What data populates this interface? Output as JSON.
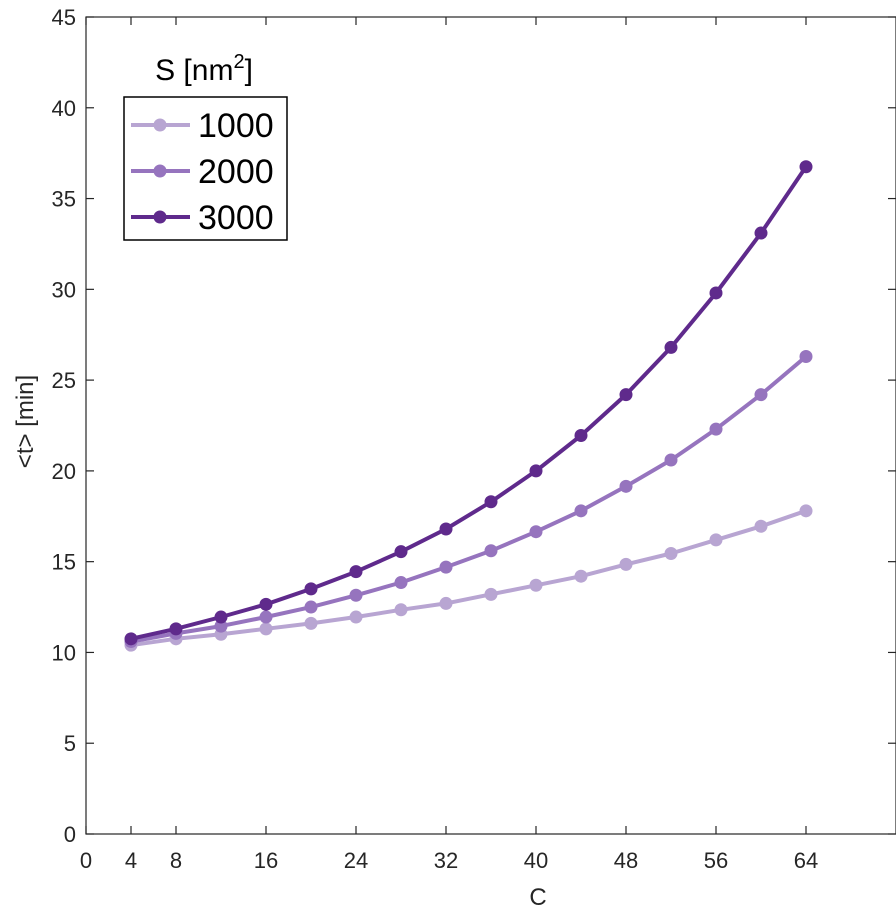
{
  "chart_data": {
    "type": "line",
    "title": "",
    "xlabel": "C",
    "ylabel": "<t> [min]",
    "xlim": [
      0,
      72
    ],
    "ylim": [
      0,
      45
    ],
    "xticks": [
      0,
      4,
      8,
      16,
      24,
      32,
      40,
      48,
      56,
      64
    ],
    "yticks": [
      0,
      5,
      10,
      15,
      20,
      25,
      30,
      35,
      40,
      45
    ],
    "grid": false,
    "legend": {
      "title_main": "S [nm",
      "title_sup": "2",
      "title_end": "]",
      "placement": "top-left"
    },
    "x": [
      4,
      8,
      12,
      16,
      20,
      24,
      28,
      32,
      36,
      40,
      44,
      48,
      52,
      56,
      60,
      64
    ],
    "series": [
      {
        "name": "1000",
        "color": "#b8a5d2",
        "values": [
          10.4,
          10.75,
          11.0,
          11.3,
          11.6,
          11.95,
          12.35,
          12.7,
          13.2,
          13.7,
          14.2,
          14.85,
          15.45,
          16.2,
          16.95,
          17.8
        ]
      },
      {
        "name": "2000",
        "color": "#9674be",
        "values": [
          10.6,
          11.05,
          11.45,
          11.95,
          12.5,
          13.15,
          13.85,
          14.7,
          15.6,
          16.65,
          17.8,
          19.15,
          20.6,
          22.3,
          24.2,
          26.3
        ]
      },
      {
        "name": "3000",
        "color": "#5f2a8c",
        "values": [
          10.75,
          11.3,
          11.95,
          12.65,
          13.5,
          14.45,
          15.55,
          16.8,
          18.3,
          20.0,
          21.95,
          24.2,
          26.8,
          29.8,
          33.1,
          36.75
        ]
      }
    ]
  }
}
